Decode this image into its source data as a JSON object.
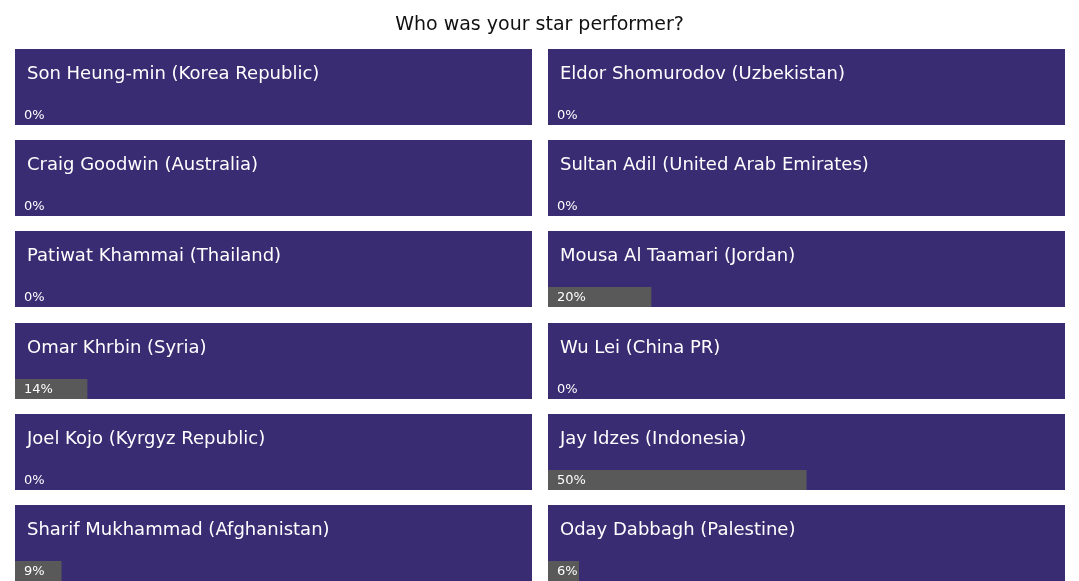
{
  "chart_data": [
    {
      "type": "bar",
      "orientation": "horizontal",
      "title": "Who was your star performer?",
      "categories": [
        "Son Heung-min (Korea Republic)",
        "Craig Goodwin (Australia)",
        "Patiwat Khammai (Thailand)",
        "Omar Khrbin (Syria)",
        "Joel Kojo (Kyrgyz Republic)",
        "Sharif Mukhammad (Afghanistan)"
      ],
      "values": [
        0,
        0,
        0,
        14,
        0,
        9
      ],
      "value_labels": [
        "0%",
        "0%",
        "0%",
        "14%",
        "0%",
        "9%"
      ],
      "color": "#595959",
      "xlim": [
        0,
        100
      ],
      "bands": [
        {
          "axis": "x",
          "from": 0,
          "to": 100,
          "color": "#392c73"
        },
        {
          "axis": "x",
          "from": 0,
          "to": 100,
          "color": "#392c73"
        },
        {
          "axis": "x",
          "from": 0,
          "to": 100,
          "color": "#392c73"
        },
        {
          "axis": "x",
          "from": 0,
          "to": 100,
          "color": "#392c73"
        },
        {
          "axis": "x",
          "from": 0,
          "to": 100,
          "color": "#392c73"
        },
        {
          "axis": "x",
          "from": 0,
          "to": 100,
          "color": "#392c73"
        }
      ]
    },
    {
      "type": "bar",
      "orientation": "horizontal",
      "categories": [
        "Eldor Shomurodov (Uzbekistan)",
        "Sultan Adil (United Arab Emirates)",
        "Mousa Al Taamari (Jordan)",
        "Wu Lei (China PR)",
        "Jay Idzes (Indonesia)",
        "Oday Dabbagh (Palestine)"
      ],
      "values": [
        0,
        0,
        20,
        0,
        50,
        6
      ],
      "value_labels": [
        "0%",
        "0%",
        "20%",
        "0%",
        "50%",
        "6%"
      ],
      "color": "#595959",
      "xlim": [
        0,
        100
      ],
      "bands": [
        {
          "axis": "x",
          "from": 0,
          "to": 100,
          "color": "#392c73"
        },
        {
          "axis": "x",
          "from": 0,
          "to": 100,
          "color": "#392c73"
        },
        {
          "axis": "x",
          "from": 0,
          "to": 100,
          "color": "#392c73"
        },
        {
          "axis": "x",
          "from": 0,
          "to": 100,
          "color": "#392c73"
        },
        {
          "axis": "x",
          "from": 0,
          "to": 100,
          "color": "#392c73"
        },
        {
          "axis": "x",
          "from": 0,
          "to": 100,
          "color": "#392c73"
        }
      ]
    }
  ]
}
